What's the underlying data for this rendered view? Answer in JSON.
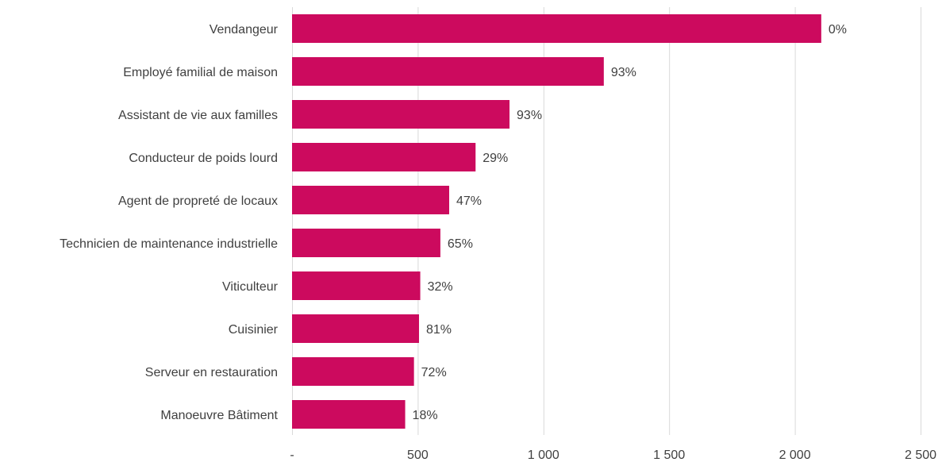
{
  "chart_data": {
    "type": "bar",
    "orientation": "horizontal",
    "title": "",
    "xlabel": "",
    "ylabel": "",
    "categories": [
      "Vendangeur ",
      "Employé familial de maison",
      "Assistant de vie aux familles",
      "Conducteur de poids lourd",
      "Agent de propreté de locaux",
      "Technicien de maintenance industrielle",
      "Viticulteur ",
      "Cuisinier ",
      "Serveur en restauration",
      "Manoeuvre Bâtiment"
    ],
    "values": [
      2105,
      1240,
      865,
      730,
      625,
      590,
      510,
      505,
      485,
      450
    ],
    "data_labels": [
      "0%",
      "93%",
      "93%",
      "29%",
      "47%",
      "65%",
      "32%",
      "81%",
      "72%",
      "18%"
    ],
    "xlim": [
      0,
      2500
    ],
    "x_ticks": [
      0,
      500,
      1000,
      1500,
      2000,
      2500
    ],
    "x_tick_labels": [
      "-",
      "500",
      "1 000",
      "1 500",
      "2 000",
      "2 500"
    ],
    "grid": "vertical",
    "legend": "none",
    "bar_color": "#cc0a5e"
  }
}
